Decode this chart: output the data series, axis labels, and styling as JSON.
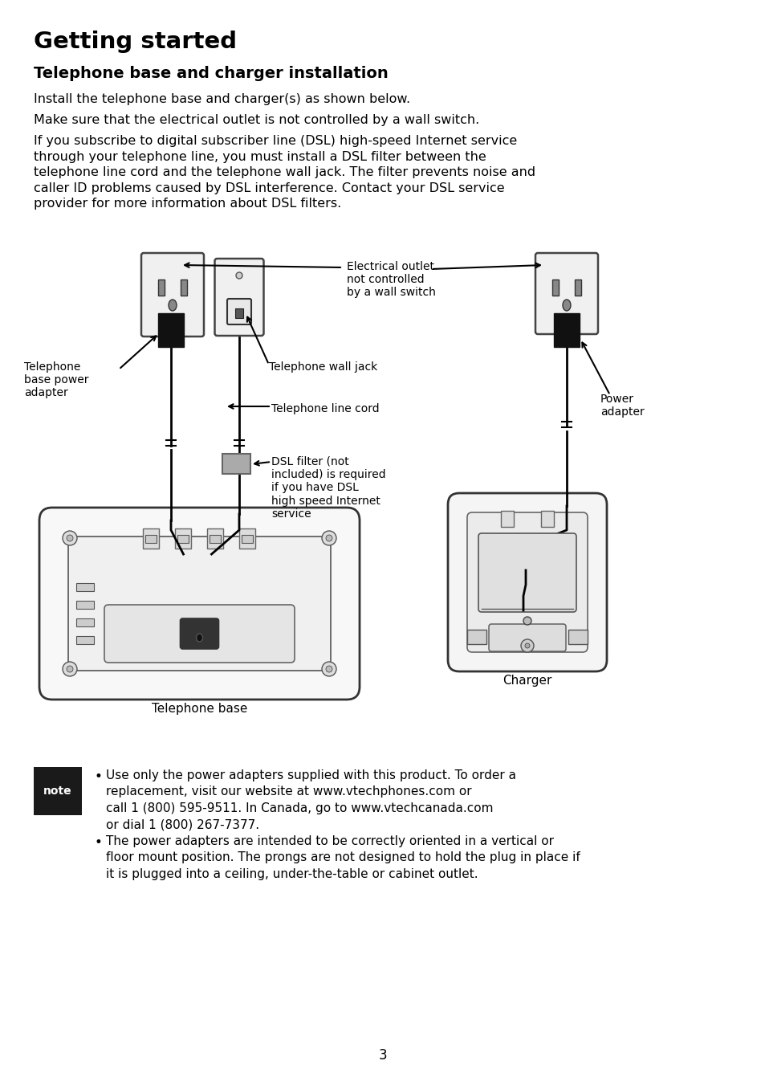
{
  "title": "Getting started",
  "subtitle": "Telephone base and charger installation",
  "para1": "Install the telephone base and charger(s) as shown below.",
  "para2": "Make sure that the electrical outlet is not controlled by a wall switch.",
  "para3": "If you subscribe to digital subscriber line (DSL) high-speed Internet service\nthrough your telephone line, you must install a DSL filter between the\ntelephone line cord and the telephone wall jack. The filter prevents noise and\ncaller ID problems caused by DSL interference. Contact your DSL service\nprovider for more information about DSL filters.",
  "label_elec": "Electrical outlet\nnot controlled\nby a wall switch",
  "label_tel_base_power": "Telephone\nbase power\nadapter",
  "label_tel_wall_jack": "Telephone wall jack",
  "label_tel_line_cord": "Telephone line cord",
  "label_dsl": "DSL filter (not\nincluded) is required\nif you have DSL\nhigh speed Internet\nservice",
  "label_power_adapter": "Power\nadapter",
  "label_charger": "Charger",
  "label_tel_base": "Telephone base",
  "note_text1": "Use only the power adapters supplied with this product. To order a\nreplacement, visit our website at www.vtechphones.com or\ncall 1 (800) 595-9511. In Canada, go to www.vtechcanada.com\nor dial 1 (800) 267-7377.",
  "note_text2": "The power adapters are intended to be correctly oriented in a vertical or\nfloor mount position. The prongs are not designed to hold the plug in place if\nit is plugged into a ceiling, under-the-table or cabinet outlet.",
  "page_num": "3",
  "bg_color": "#ffffff",
  "text_color": "#000000",
  "note_bg": "#1a1a1a"
}
